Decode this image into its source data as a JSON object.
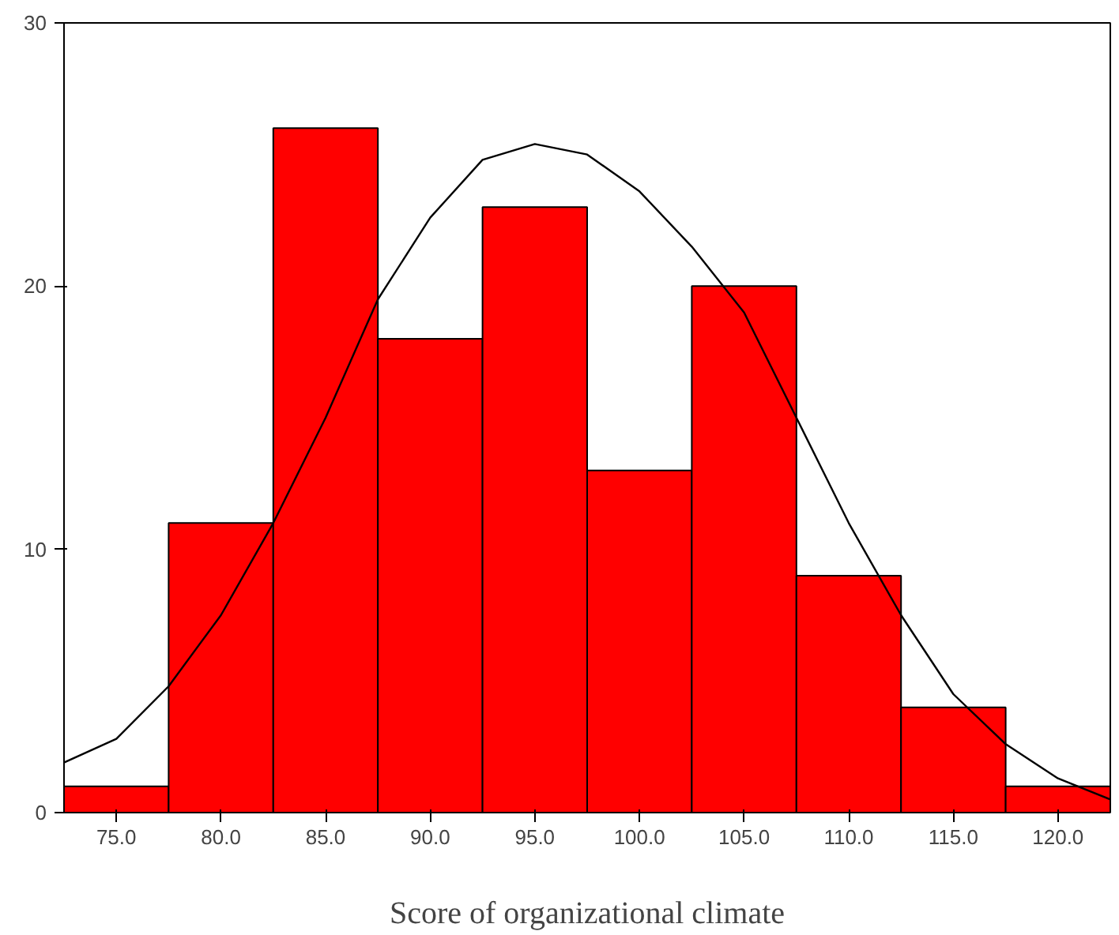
{
  "chart_data": {
    "type": "histogram",
    "xlabel": "Score of organizational climate",
    "bins": [
      72.5,
      77.5,
      82.5,
      87.5,
      92.5,
      97.5,
      102.5,
      107.5,
      112.5,
      117.5,
      122.5
    ],
    "values": [
      1,
      11,
      26,
      18,
      23,
      13,
      20,
      9,
      4,
      1
    ],
    "color": "#ff0000",
    "series": [
      {
        "type": "line",
        "color": "#000000",
        "x": [
          72.5,
          75,
          77.5,
          80,
          82.5,
          85,
          87.5,
          90,
          92.5,
          95,
          97.5,
          100,
          102.5,
          105,
          107.5,
          110,
          112.5,
          115,
          117.5,
          120,
          122.5
        ],
        "values": [
          1.9,
          2.8,
          4.8,
          7.5,
          11,
          15,
          19.5,
          22.6,
          24.8,
          25.4,
          25,
          23.6,
          21.5,
          19,
          15,
          11,
          7.5,
          4.5,
          2.6,
          1.3,
          0.5
        ]
      }
    ],
    "xlim": [
      72.5,
      122.5
    ],
    "ylim": [
      0,
      30
    ],
    "xticks": [
      {
        "value": 75,
        "label": "75.0"
      },
      {
        "value": 80,
        "label": "80.0"
      },
      {
        "value": 85,
        "label": "85.0"
      },
      {
        "value": 90,
        "label": "90.0"
      },
      {
        "value": 95,
        "label": "95.0"
      },
      {
        "value": 100,
        "label": "100.0"
      },
      {
        "value": 105,
        "label": "105.0"
      },
      {
        "value": 110,
        "label": "110.0"
      },
      {
        "value": 115,
        "label": "115.0"
      },
      {
        "value": 120,
        "label": "120.0"
      }
    ],
    "yticks": [
      0,
      10,
      20,
      30
    ],
    "grid": false
  }
}
